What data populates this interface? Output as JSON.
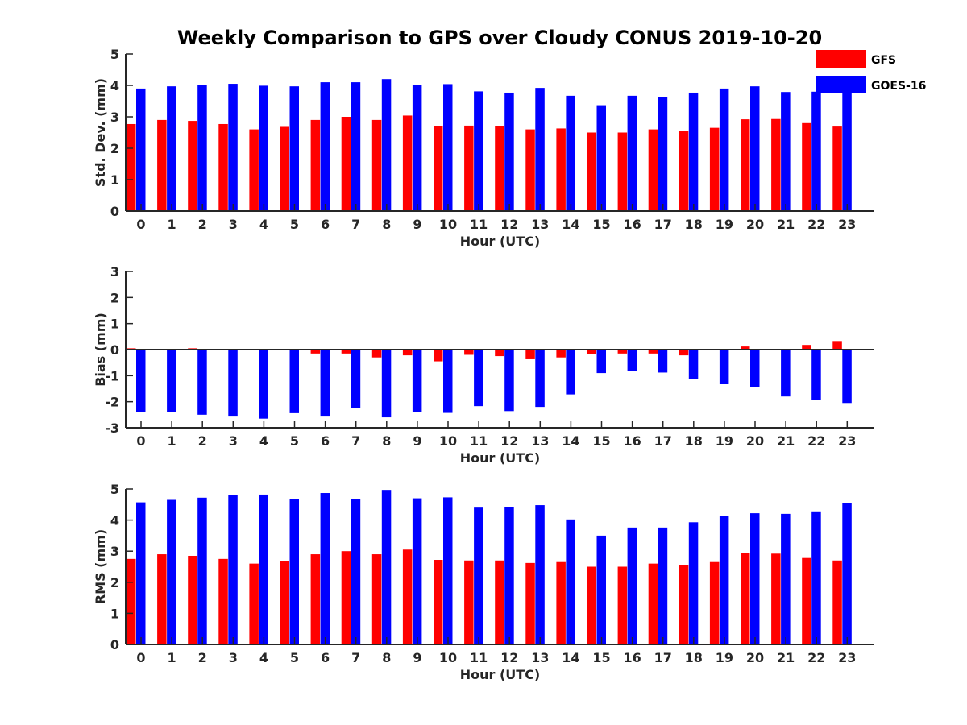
{
  "title": "Weekly Comparison to GPS over Cloudy CONUS 2019-10-20",
  "colors": {
    "GFS": "#ff0000",
    "GOES-16": "#0000ff",
    "axis": "#262626"
  },
  "legend": {
    "placement": "top-right",
    "entries": [
      "GFS",
      "GOES-16"
    ]
  },
  "chart_data": [
    {
      "type": "bar",
      "xlabel": "Hour (UTC)",
      "ylabel": "Std. Dev. (mm)",
      "ylim": [
        0,
        5
      ],
      "yticks": [
        0,
        1,
        2,
        3,
        4,
        5
      ],
      "categories": [
        "0",
        "1",
        "2",
        "3",
        "4",
        "5",
        "6",
        "7",
        "8",
        "9",
        "10",
        "11",
        "12",
        "13",
        "14",
        "15",
        "16",
        "17",
        "18",
        "19",
        "20",
        "21",
        "22",
        "23"
      ],
      "series": [
        {
          "name": "GFS",
          "values": [
            2.77,
            2.9,
            2.87,
            2.77,
            2.6,
            2.68,
            2.9,
            3.0,
            2.9,
            3.04,
            2.7,
            2.72,
            2.7,
            2.6,
            2.63,
            2.5,
            2.5,
            2.6,
            2.54,
            2.65,
            2.92,
            2.93,
            2.8,
            2.69
          ]
        },
        {
          "name": "GOES-16",
          "values": [
            3.9,
            3.97,
            4.0,
            4.05,
            3.99,
            3.97,
            4.1,
            4.1,
            4.2,
            4.02,
            4.04,
            3.81,
            3.77,
            3.92,
            3.67,
            3.37,
            3.67,
            3.63,
            3.77,
            3.9,
            3.97,
            3.79,
            3.8,
            3.96
          ]
        }
      ]
    },
    {
      "type": "bar",
      "xlabel": "Hour (UTC)",
      "ylabel": "Bias (mm)",
      "ylim": [
        -3,
        3
      ],
      "yticks": [
        -3,
        -2,
        -1,
        0,
        1,
        2,
        3
      ],
      "categories": [
        "0",
        "1",
        "2",
        "3",
        "4",
        "5",
        "6",
        "7",
        "8",
        "9",
        "10",
        "11",
        "12",
        "13",
        "14",
        "15",
        "16",
        "17",
        "18",
        "19",
        "20",
        "21",
        "22",
        "23"
      ],
      "series": [
        {
          "name": "GFS",
          "values": [
            0.05,
            0.0,
            0.05,
            0.0,
            -0.03,
            0.0,
            -0.15,
            -0.15,
            -0.3,
            -0.22,
            -0.45,
            -0.2,
            -0.25,
            -0.37,
            -0.3,
            -0.18,
            -0.15,
            -0.15,
            -0.22,
            0.0,
            0.12,
            0.0,
            0.18,
            0.33
          ]
        },
        {
          "name": "GOES-16",
          "values": [
            -2.4,
            -2.4,
            -2.5,
            -2.57,
            -2.65,
            -2.44,
            -2.57,
            -2.23,
            -2.6,
            -2.4,
            -2.43,
            -2.17,
            -2.36,
            -2.2,
            -1.72,
            -0.9,
            -0.82,
            -0.88,
            -1.13,
            -1.33,
            -1.45,
            -1.8,
            -1.93,
            -2.05
          ]
        }
      ]
    },
    {
      "type": "bar",
      "xlabel": "Hour (UTC)",
      "ylabel": "RMS (mm)",
      "ylim": [
        0,
        5
      ],
      "yticks": [
        0,
        1,
        2,
        3,
        4,
        5
      ],
      "categories": [
        "0",
        "1",
        "2",
        "3",
        "4",
        "5",
        "6",
        "7",
        "8",
        "9",
        "10",
        "11",
        "12",
        "13",
        "14",
        "15",
        "16",
        "17",
        "18",
        "19",
        "20",
        "21",
        "22",
        "23"
      ],
      "series": [
        {
          "name": "GFS",
          "values": [
            2.75,
            2.9,
            2.85,
            2.75,
            2.6,
            2.68,
            2.9,
            3.0,
            2.9,
            3.05,
            2.72,
            2.7,
            2.7,
            2.62,
            2.65,
            2.5,
            2.5,
            2.6,
            2.55,
            2.65,
            2.93,
            2.92,
            2.78,
            2.7
          ]
        },
        {
          "name": "GOES-16",
          "values": [
            4.57,
            4.65,
            4.72,
            4.8,
            4.82,
            4.68,
            4.87,
            4.68,
            4.97,
            4.7,
            4.73,
            4.4,
            4.43,
            4.48,
            4.02,
            3.5,
            3.76,
            3.76,
            3.93,
            4.12,
            4.22,
            4.2,
            4.28,
            4.55
          ]
        }
      ]
    }
  ]
}
